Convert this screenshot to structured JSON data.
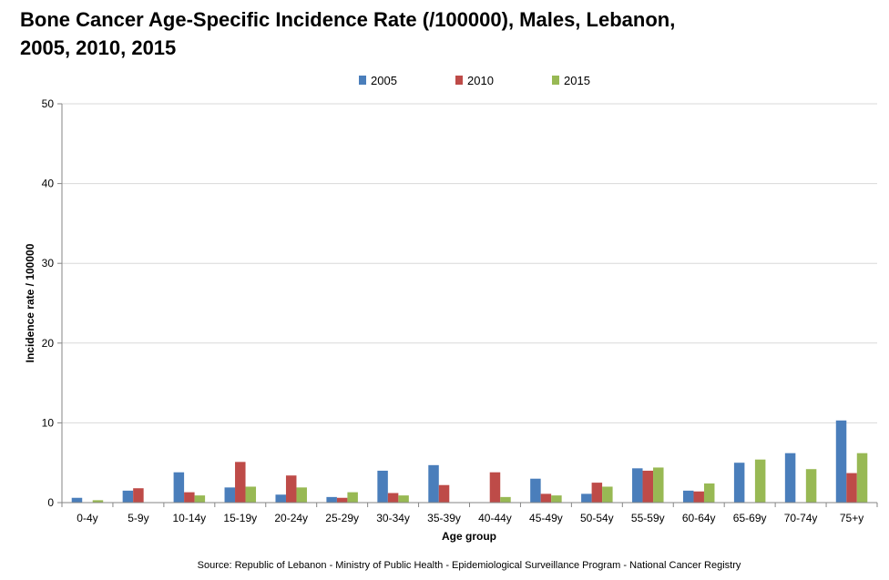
{
  "chart_data": {
    "type": "bar",
    "title": "Bone Cancer Age-Specific Incidence Rate (/100000), Males, Lebanon, 2005, 2010, 2015",
    "xlabel": "Age group",
    "ylabel": "Incidence rate / 100000",
    "ylim": [
      0,
      50
    ],
    "yticks": [
      0,
      10,
      20,
      30,
      40,
      50
    ],
    "grid": true,
    "legend_position": "top",
    "categories": [
      "0-4y",
      "5-9y",
      "10-14y",
      "15-19y",
      "20-24y",
      "25-29y",
      "30-34y",
      "35-39y",
      "40-44y",
      "45-49y",
      "50-54y",
      "55-59y",
      "60-64y",
      "65-69y",
      "70-74y",
      "75+y"
    ],
    "series": [
      {
        "name": "2005",
        "color": "#4a7ebb",
        "values": [
          0.6,
          1.5,
          3.8,
          1.9,
          1.0,
          0.7,
          4.0,
          4.7,
          0,
          3.0,
          1.1,
          4.3,
          1.5,
          5.0,
          6.2,
          10.3
        ]
      },
      {
        "name": "2010",
        "color": "#be4b48",
        "values": [
          0,
          1.8,
          1.3,
          5.1,
          3.4,
          0.6,
          1.2,
          2.2,
          3.8,
          1.1,
          2.5,
          4.0,
          1.4,
          0,
          0,
          3.7
        ]
      },
      {
        "name": "2015",
        "color": "#98b954",
        "values": [
          0.3,
          0,
          0.9,
          2.0,
          1.9,
          1.3,
          0.9,
          0,
          0.7,
          0.9,
          2.0,
          4.4,
          2.4,
          5.4,
          4.2,
          6.2
        ]
      }
    ],
    "source": "Source: Republic of Lebanon - Ministry of Public Health - Epidemiological Surveillance Program - National Cancer Registry"
  }
}
